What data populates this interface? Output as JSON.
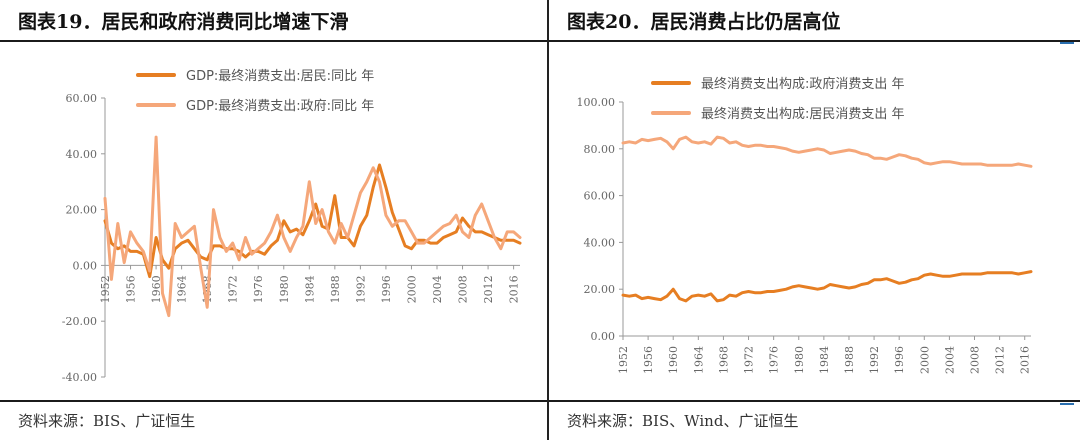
{
  "colors": {
    "dark_orange": "#e67e22",
    "light_orange": "#f5a77a"
  },
  "panels": {
    "left": {
      "title": "图表19．居民和政府消费同比增速下滑",
      "source": "资料来源：BIS、广证恒生"
    },
    "right": {
      "title": "图表20．居民消费占比仍居高位",
      "source": "资料来源：BIS、Wind、广证恒生"
    }
  },
  "chart_data": [
    {
      "type": "line",
      "title": "图表19．居民和政府消费同比增速下滑",
      "ylim": [
        -40,
        60
      ],
      "y_ticks": [
        "60.00",
        "40.00",
        "20.00",
        "0.00",
        "-20.00",
        "-40.00"
      ],
      "x_ticks": [
        "1952",
        "1956",
        "1960",
        "1964",
        "1968",
        "1972",
        "1976",
        "1980",
        "1984",
        "1988",
        "1992",
        "1996",
        "2000",
        "2004",
        "2008",
        "2012",
        "2016"
      ],
      "x": [
        1952,
        1953,
        1954,
        1955,
        1956,
        1957,
        1958,
        1959,
        1960,
        1961,
        1962,
        1963,
        1964,
        1965,
        1966,
        1967,
        1968,
        1969,
        1970,
        1971,
        1972,
        1973,
        1974,
        1975,
        1976,
        1977,
        1978,
        1979,
        1980,
        1981,
        1982,
        1983,
        1984,
        1985,
        1986,
        1987,
        1988,
        1989,
        1990,
        1991,
        1992,
        1993,
        1994,
        1995,
        1996,
        1997,
        1998,
        1999,
        2000,
        2001,
        2002,
        2003,
        2004,
        2005,
        2006,
        2007,
        2008,
        2009,
        2010,
        2011,
        2012,
        2013,
        2014,
        2015,
        2016,
        2017
      ],
      "series": [
        {
          "name": "GDP:最终消费支出:居民:同比 年",
          "color": "#e67e22",
          "values": [
            16,
            8,
            6,
            7,
            5,
            5,
            4,
            -4,
            10,
            2,
            -1,
            6,
            8,
            9,
            6,
            3,
            2,
            7,
            7,
            6,
            6,
            5,
            3,
            5,
            5,
            4,
            7,
            9,
            16,
            12,
            13,
            11,
            16,
            22,
            14,
            13,
            25,
            10,
            10,
            7,
            14,
            18,
            28,
            36,
            28,
            19,
            13,
            7,
            6,
            9,
            9,
            8,
            8,
            10,
            11,
            12,
            17,
            14,
            12,
            12,
            11,
            10,
            9,
            9,
            9,
            8
          ]
        },
        {
          "name": "GDP:最终消费支出:政府:同比 年",
          "color": "#f5a77a",
          "values": [
            24,
            -5,
            15,
            1,
            12,
            8,
            5,
            -2,
            46,
            -10,
            -18,
            15,
            10,
            12,
            14,
            -1,
            -15,
            20,
            10,
            5,
            8,
            2,
            10,
            4,
            6,
            8,
            12,
            18,
            10,
            5,
            10,
            14,
            30,
            15,
            20,
            12,
            8,
            15,
            10,
            18,
            26,
            30,
            35,
            30,
            18,
            14,
            16,
            16,
            12,
            8,
            8,
            10,
            12,
            14,
            15,
            18,
            12,
            10,
            18,
            22,
            16,
            10,
            6,
            12,
            12,
            10
          ]
        }
      ]
    },
    {
      "type": "line",
      "title": "图表20．居民消费占比仍居高位",
      "ylim": [
        0,
        100
      ],
      "y_ticks": [
        "100.00",
        "80.00",
        "60.00",
        "40.00",
        "20.00",
        "0.00"
      ],
      "x_ticks": [
        "1952",
        "1956",
        "1960",
        "1964",
        "1968",
        "1972",
        "1976",
        "1980",
        "1984",
        "1988",
        "1992",
        "1996",
        "2000",
        "2004",
        "2008",
        "2012",
        "2016"
      ],
      "x": [
        1952,
        1953,
        1954,
        1955,
        1956,
        1957,
        1958,
        1959,
        1960,
        1961,
        1962,
        1963,
        1964,
        1965,
        1966,
        1967,
        1968,
        1969,
        1970,
        1971,
        1972,
        1973,
        1974,
        1975,
        1976,
        1977,
        1978,
        1979,
        1980,
        1981,
        1982,
        1983,
        1984,
        1985,
        1986,
        1987,
        1988,
        1989,
        1990,
        1991,
        1992,
        1993,
        1994,
        1995,
        1996,
        1997,
        1998,
        1999,
        2000,
        2001,
        2002,
        2003,
        2004,
        2005,
        2006,
        2007,
        2008,
        2009,
        2010,
        2011,
        2012,
        2013,
        2014,
        2015,
        2016,
        2017
      ],
      "series": [
        {
          "name": "最终消费支出构成:政府消费支出 年",
          "color": "#e67e22",
          "values": [
            17.5,
            17,
            17.5,
            16,
            16.5,
            16,
            15.5,
            17,
            20,
            16,
            15,
            17,
            17.5,
            17,
            18,
            15,
            15.5,
            17.5,
            17,
            18.5,
            19,
            18.5,
            18.5,
            19,
            19,
            19.5,
            20,
            21,
            21.5,
            21,
            20.5,
            20,
            20.5,
            22,
            21.5,
            21,
            20.5,
            21,
            22,
            22.5,
            24,
            24,
            24.5,
            23.5,
            22.5,
            23,
            24,
            24.5,
            26,
            26.5,
            26,
            25.5,
            25.5,
            26,
            26.5,
            26.5,
            26.5,
            26.5,
            27,
            27,
            27,
            27,
            27,
            26.5,
            27,
            27.5
          ]
        },
        {
          "name": "最终消费支出构成:居民消费支出 年",
          "color": "#f5a77a",
          "values": [
            82.5,
            83,
            82.5,
            84,
            83.5,
            84,
            84.5,
            83,
            80,
            84,
            85,
            83,
            82.5,
            83,
            82,
            85,
            84.5,
            82.5,
            83,
            81.5,
            81,
            81.5,
            81.5,
            81,
            81,
            80.5,
            80,
            79,
            78.5,
            79,
            79.5,
            80,
            79.5,
            78,
            78.5,
            79,
            79.5,
            79,
            78,
            77.5,
            76,
            76,
            75.5,
            76.5,
            77.5,
            77,
            76,
            75.5,
            74,
            73.5,
            74,
            74.5,
            74.5,
            74,
            73.5,
            73.5,
            73.5,
            73.5,
            73,
            73,
            73,
            73,
            73,
            73.5,
            73,
            72.5
          ]
        }
      ]
    }
  ]
}
